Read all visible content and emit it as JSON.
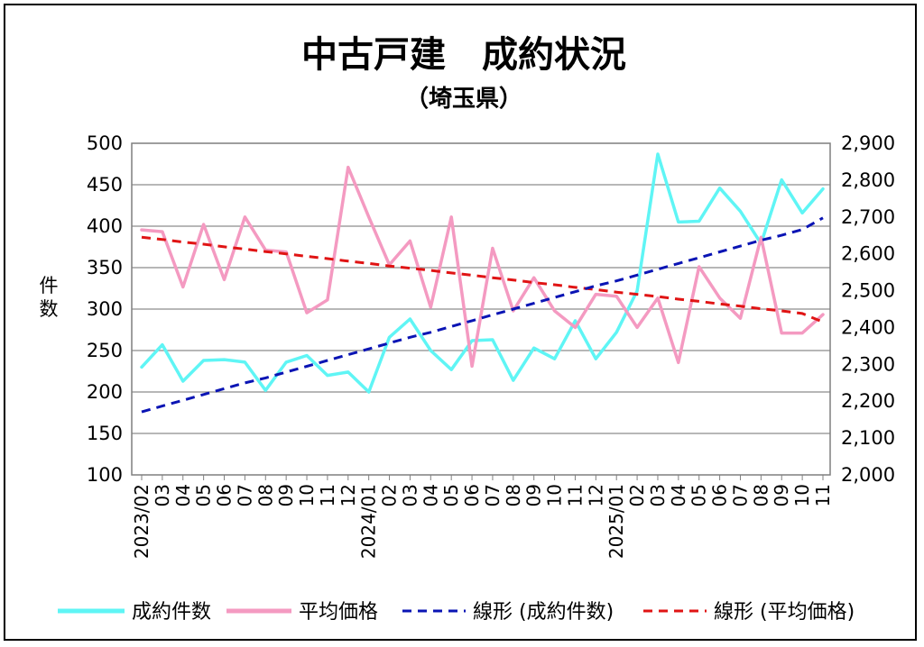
{
  "colors": {
    "contracts": "#5ff5f5",
    "avg_price": "#f49ac1",
    "trend_contracts": "#0a14b4",
    "trend_price": "#e01414"
  },
  "chart_data": {
    "type": "line",
    "title": "中古戸建　成約状況",
    "subtitle": "（埼玉県）",
    "ylabel": "件数",
    "ylim": [
      100,
      500
    ],
    "yticks": [
      100,
      150,
      200,
      250,
      300,
      350,
      400,
      450,
      500
    ],
    "y2lim": [
      2000,
      2900
    ],
    "y2ticks": [
      "2,000",
      "2,100",
      "2,200",
      "2,300",
      "2,400",
      "2,500",
      "2,600",
      "2,700",
      "2,800",
      "2,900"
    ],
    "y2tick_values": [
      2000,
      2100,
      2200,
      2300,
      2400,
      2500,
      2600,
      2700,
      2800,
      2900
    ],
    "grid": true,
    "legend_position": "bottom",
    "categories": [
      "2023/02",
      "03",
      "04",
      "05",
      "06",
      "07",
      "08",
      "09",
      "10",
      "11",
      "12",
      "2024/01",
      "02",
      "03",
      "04",
      "05",
      "06",
      "07",
      "08",
      "09",
      "10",
      "11",
      "12",
      "2025/01",
      "02",
      "03",
      "04",
      "05",
      "06",
      "07",
      "08",
      "09",
      "10",
      "11"
    ],
    "series": [
      {
        "name": "成約件数",
        "axis": "left",
        "style": "solid",
        "values": [
          230,
          257,
          213,
          238,
          239,
          236,
          202,
          236,
          244,
          220,
          224,
          200,
          266,
          288,
          250,
          227,
          262,
          263,
          214,
          253,
          240,
          286,
          240,
          272,
          322,
          487,
          405,
          406,
          446,
          418,
          379,
          456,
          416,
          445
        ]
      },
      {
        "name": "平均価格",
        "axis": "right",
        "style": "solid",
        "values": [
          2665,
          2660,
          2510,
          2680,
          2530,
          2700,
          2610,
          2605,
          2440,
          2475,
          2835,
          2700,
          2570,
          2635,
          2455,
          2700,
          2295,
          2615,
          2445,
          2535,
          2445,
          2400,
          2490,
          2485,
          2400,
          2480,
          2305,
          2565,
          2480,
          2425,
          2645,
          2385,
          2385,
          2435
        ]
      },
      {
        "name": "線形 (成約件数)",
        "axis": "left",
        "style": "dashed",
        "values": [
          176,
          183,
          190,
          197,
          204,
          211,
          217,
          224,
          231,
          238,
          245,
          252,
          259,
          266,
          272,
          279,
          286,
          293,
          300,
          307,
          314,
          321,
          328,
          334,
          341,
          348,
          355,
          362,
          369,
          376,
          383,
          389,
          396,
          410
        ]
      },
      {
        "name": "線形 (平均価格)",
        "axis": "right",
        "style": "dashed",
        "values": [
          2645,
          2639,
          2632,
          2626,
          2619,
          2613,
          2606,
          2600,
          2593,
          2587,
          2580,
          2574,
          2567,
          2561,
          2555,
          2548,
          2542,
          2535,
          2529,
          2522,
          2516,
          2509,
          2503,
          2496,
          2490,
          2484,
          2477,
          2471,
          2464,
          2458,
          2451,
          2445,
          2438,
          2415
        ]
      }
    ]
  }
}
